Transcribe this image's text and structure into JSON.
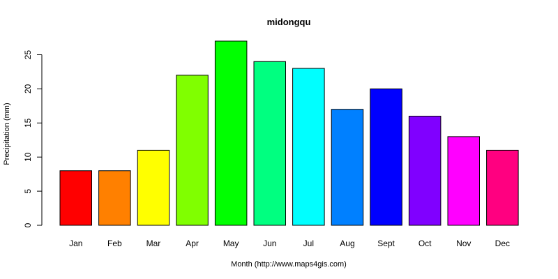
{
  "chart_data": {
    "type": "bar",
    "title": "midongqu",
    "xlabel": "Month (http://www.maps4gis.com)",
    "ylabel": "Precipitation (mm)",
    "categories": [
      "Jan",
      "Feb",
      "Mar",
      "Apr",
      "May",
      "Jun",
      "Jul",
      "Aug",
      "Sept",
      "Oct",
      "Nov",
      "Dec"
    ],
    "values": [
      8,
      8,
      11,
      22,
      27,
      24,
      23,
      17,
      20,
      16,
      13,
      11
    ],
    "colors": [
      "#ff0000",
      "#ff8000",
      "#ffff00",
      "#80ff00",
      "#00ff00",
      "#00ff80",
      "#00ffff",
      "#0080ff",
      "#0000ff",
      "#8000ff",
      "#ff00ff",
      "#ff0080"
    ],
    "yticks": [
      0,
      5,
      10,
      15,
      20,
      25
    ],
    "ylim": [
      0,
      27
    ],
    "grid": false,
    "legend": "none"
  }
}
